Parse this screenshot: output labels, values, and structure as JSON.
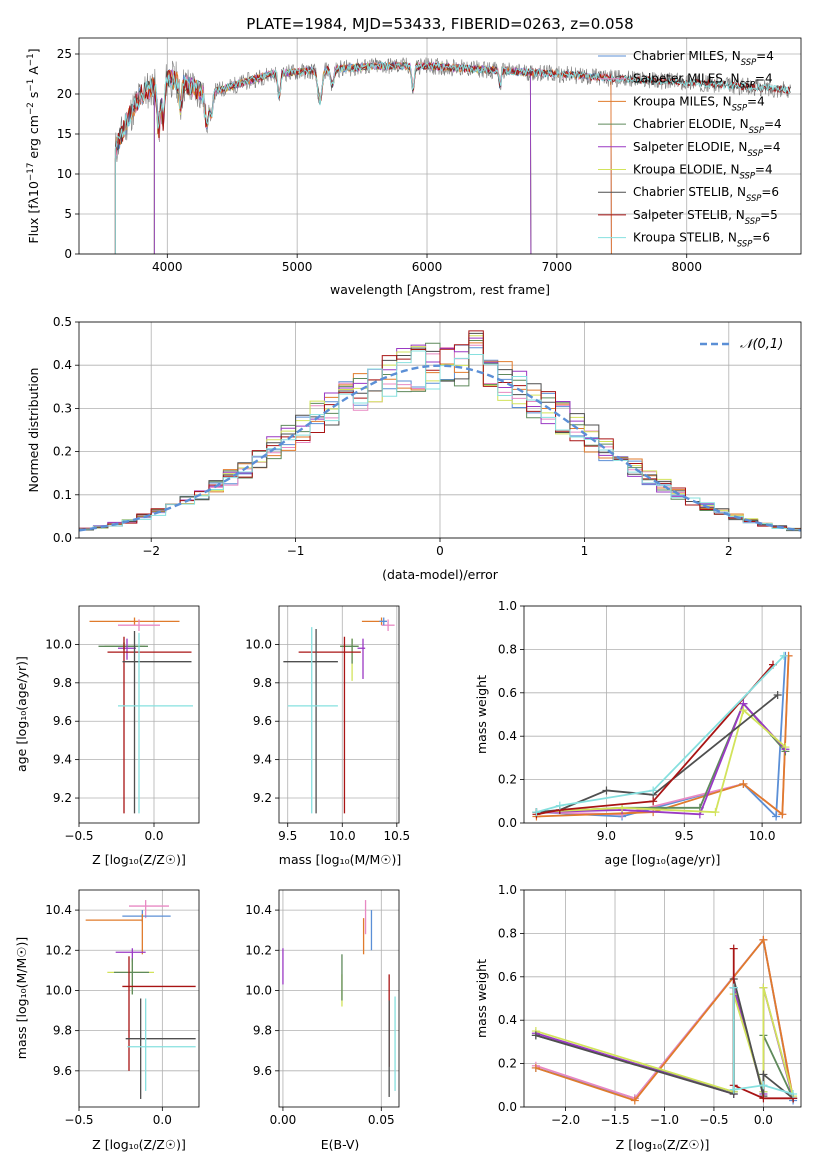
{
  "colors": {
    "Chabrier MILES": "#5b8fd6",
    "Salpeter MILES": "#e889c3",
    "Kroupa MILES": "#e07b2c",
    "Chabrier ELODIE": "#5f8a5c",
    "Salpeter ELODIE": "#9a39c4",
    "Kroupa ELODIE": "#d2e35b",
    "Chabrier STELIB": "#4f4f4f",
    "Salpeter STELIB": "#a81414",
    "Kroupa STELIB": "#86e0df",
    "gauss": "#5b8fd6",
    "data": "#7a7a7a"
  },
  "chart_data": [
    {
      "id": "spectrum",
      "type": "line",
      "title": "PLATE=1984, MJD=53433, FIBERID=0263, z=0.058",
      "xlabel": "wavelength [Angstrom, rest frame]",
      "ylabel": "Flux [fλ10⁻¹⁷ erg cm⁻² s⁻¹ A⁻¹]",
      "xlim": [
        3320,
        8880
      ],
      "ylim": [
        0,
        27
      ],
      "xticks": [
        4000,
        5000,
        6000,
        7000,
        8000
      ],
      "yticks": [
        0,
        5,
        10,
        15,
        20,
        25
      ],
      "legend": "top-right",
      "legend_entries": [
        "Chabrier MILES, N_SSP=4",
        "Salpeter MILES, N_SSP=4",
        "Kroupa MILES, N_SSP=4",
        "Chabrier ELODIE, N_SSP=4",
        "Salpeter ELODIE, N_SSP=4",
        "Kroupa ELODIE, N_SSP=4",
        "Chabrier STELIB, N_SSP=6",
        "Salpeter STELIB, N_SSP=5",
        "Kroupa STELIB, N_SSP=6"
      ],
      "continuum": [
        [
          3600,
          13
        ],
        [
          3700,
          17
        ],
        [
          3800,
          20
        ],
        [
          3900,
          21
        ],
        [
          4000,
          22
        ],
        [
          4100,
          21.5
        ],
        [
          4300,
          20
        ],
        [
          4500,
          21
        ],
        [
          4800,
          22.5
        ],
        [
          5200,
          23
        ],
        [
          5600,
          23.5
        ],
        [
          6000,
          23.5
        ],
        [
          6500,
          23
        ],
        [
          7000,
          22.5
        ],
        [
          7400,
          22
        ],
        [
          8000,
          21.5
        ],
        [
          8800,
          20.5
        ]
      ],
      "model_ranges": {
        "MILES": [
          3600,
          7420
        ],
        "ELODIE": [
          3900,
          6800
        ],
        "STELIB": [
          3600,
          8800
        ]
      },
      "data_range": [
        3600,
        8800
      ]
    },
    {
      "id": "residuals",
      "type": "line",
      "xlabel": "(data-model)/error",
      "ylabel": "Normed distribution",
      "xlim": [
        -2.5,
        2.5
      ],
      "ylim": [
        0,
        0.5
      ],
      "xticks": [
        -2,
        -1,
        0,
        1,
        2
      ],
      "xtick_labels": [
        "−2",
        "−1",
        "0",
        "1",
        "2"
      ],
      "yticks": [
        0.0,
        0.1,
        0.2,
        0.3,
        0.4,
        0.5
      ],
      "ytick_labels": [
        "0.0",
        "0.1",
        "0.2",
        "0.3",
        "0.4",
        "0.5"
      ],
      "legend": "top-right",
      "legend_entries": [
        "𝒩(0,1)"
      ],
      "bin_width": 0.1,
      "bin_start": -2.5
    },
    {
      "id": "z-age",
      "type": "scatter",
      "xlabel": "Z [log₁₀(Z/Z☉)]",
      "ylabel": "age  [log₁₀(age/yr)]",
      "xlim": [
        -0.5,
        0.3
      ],
      "ylim": [
        9.07,
        10.2
      ],
      "xticks": [
        -0.5,
        0.0
      ],
      "xtick_labels": [
        "−0.5",
        "0.0"
      ],
      "yticks": [
        9.2,
        9.4,
        9.6,
        9.8,
        10.0
      ],
      "ytick_labels": [
        "9.2",
        "9.4",
        "9.6",
        "9.8",
        "10.0"
      ],
      "points": [
        {
          "m": "Kroupa MILES",
          "x": -0.13,
          "y": 10.12,
          "ex": [
            -0.43,
            0.17
          ],
          "ey": [
            10.1,
            10.14
          ]
        },
        {
          "m": "Salpeter MILES",
          "x": -0.1,
          "y": 10.1,
          "ex": [
            -0.24,
            0.04
          ],
          "ey": [
            10.07,
            10.13
          ]
        },
        {
          "m": "Chabrier MILES",
          "x": -0.2,
          "y": 9.99,
          "ex": [
            -0.33,
            -0.08
          ],
          "ey": [
            9.97,
            10.01
          ]
        },
        {
          "m": "Kroupa ELODIE",
          "x": -0.2,
          "y": 9.99,
          "ex": [
            -0.33,
            -0.06
          ],
          "ey": [
            9.97,
            10.01
          ]
        },
        {
          "m": "Chabrier ELODIE",
          "x": -0.2,
          "y": 9.99,
          "ex": [
            -0.37,
            -0.04
          ],
          "ey": [
            9.97,
            10.01
          ]
        },
        {
          "m": "Salpeter ELODIE",
          "x": -0.18,
          "y": 9.98,
          "ex": [
            -0.24,
            -0.12
          ],
          "ey": [
            9.92,
            10.03
          ]
        },
        {
          "m": "Salpeter STELIB",
          "x": -0.2,
          "y": 9.96,
          "ex": [
            -0.31,
            0.25
          ],
          "ey": [
            9.12,
            10.04
          ]
        },
        {
          "m": "Chabrier STELIB",
          "x": -0.13,
          "y": 9.91,
          "ex": [
            -0.21,
            0.25
          ],
          "ey": [
            9.12,
            10.07
          ]
        },
        {
          "m": "Kroupa STELIB",
          "x": -0.1,
          "y": 9.68,
          "ex": [
            -0.24,
            0.26
          ],
          "ey": [
            9.12,
            10.06
          ]
        }
      ]
    },
    {
      "id": "mass-age",
      "type": "scatter",
      "xlabel": "mass [log₁₀(M/M☉)]",
      "ylabel": "",
      "xlim": [
        9.42,
        10.52
      ],
      "ylim": [
        9.07,
        10.2
      ],
      "xticks": [
        9.5,
        10.0,
        10.5
      ],
      "xtick_labels": [
        "9.5",
        "10.0",
        "10.5"
      ],
      "yticks": [
        9.2,
        9.4,
        9.6,
        9.8,
        10.0
      ],
      "ytick_labels": [
        "9.2",
        "9.4",
        "9.6",
        "9.8",
        "10.0"
      ],
      "points": [
        {
          "m": "Kroupa MILES",
          "x": 10.36,
          "y": 10.12,
          "ex": [
            10.18,
            10.41
          ],
          "ey": [
            10.1,
            10.14
          ]
        },
        {
          "m": "Salpeter MILES",
          "x": 10.42,
          "y": 10.1,
          "ex": [
            10.36,
            10.48
          ],
          "ey": [
            10.07,
            10.13
          ]
        },
        {
          "m": "Chabrier MILES",
          "x": 10.38,
          "y": 10.12,
          "ex": [
            10.34,
            10.41
          ],
          "ey": [
            10.1,
            10.14
          ]
        },
        {
          "m": "Kroupa ELODIE",
          "x": 10.09,
          "y": 9.99,
          "ex": [
            9.98,
            10.15
          ],
          "ey": [
            9.81,
            10.03
          ]
        },
        {
          "m": "Chabrier ELODIE",
          "x": 10.09,
          "y": 9.99,
          "ex": [
            9.98,
            10.15
          ],
          "ey": [
            9.9,
            10.03
          ]
        },
        {
          "m": "Salpeter ELODIE",
          "x": 10.19,
          "y": 9.98,
          "ex": [
            10.14,
            10.21
          ],
          "ey": [
            9.82,
            10.03
          ]
        },
        {
          "m": "Salpeter STELIB",
          "x": 10.02,
          "y": 9.96,
          "ex": [
            9.6,
            10.17
          ],
          "ey": [
            9.12,
            10.04
          ]
        },
        {
          "m": "Chabrier STELIB",
          "x": 9.76,
          "y": 9.91,
          "ex": [
            9.46,
            9.96
          ],
          "ey": [
            9.12,
            10.08
          ]
        },
        {
          "m": "Kroupa STELIB",
          "x": 9.72,
          "y": 9.68,
          "ex": [
            9.5,
            9.96
          ],
          "ey": [
            9.12,
            10.09
          ]
        }
      ]
    },
    {
      "id": "age-weight",
      "type": "line",
      "xlabel": "age  [log₁₀(age/yr)]",
      "ylabel": "mass weight",
      "xlim": [
        8.47,
        10.25
      ],
      "ylim": [
        0,
        1
      ],
      "xticks": [
        9.0,
        9.5,
        10.0
      ],
      "xtick_labels": [
        "9.0",
        "9.5",
        "10.0"
      ],
      "yticks": [
        0.0,
        0.2,
        0.4,
        0.6,
        0.8,
        1.0
      ],
      "ytick_labels": [
        "0.0",
        "0.2",
        "0.4",
        "0.6",
        "0.8",
        "1.0"
      ],
      "series": [
        {
          "m": "Chabrier MILES",
          "x": [
            8.55,
            9.1,
            9.88,
            10.09,
            10.15
          ],
          "y": [
            0.05,
            0.03,
            0.18,
            0.03,
            0.77
          ]
        },
        {
          "m": "Salpeter MILES",
          "x": [
            8.55,
            9.1,
            9.88,
            10.13,
            10.17
          ],
          "y": [
            0.05,
            0.04,
            0.18,
            0.04,
            0.77
          ]
        },
        {
          "m": "Kroupa MILES",
          "x": [
            8.55,
            9.3,
            9.88,
            10.13,
            10.17
          ],
          "y": [
            0.03,
            0.05,
            0.18,
            0.04,
            0.77
          ]
        },
        {
          "m": "Chabrier ELODIE",
          "x": [
            8.55,
            9.1,
            9.6,
            9.88,
            10.15
          ],
          "y": [
            0.05,
            0.07,
            0.07,
            0.55,
            0.33
          ]
        },
        {
          "m": "Salpeter ELODIE",
          "x": [
            8.55,
            9.1,
            9.6,
            9.88,
            10.15
          ],
          "y": [
            0.05,
            0.06,
            0.04,
            0.55,
            0.34
          ]
        },
        {
          "m": "Kroupa ELODIE",
          "x": [
            8.55,
            9.1,
            9.7,
            9.88,
            10.15
          ],
          "y": [
            0.05,
            0.07,
            0.05,
            0.52,
            0.35
          ]
        },
        {
          "m": "Chabrier STELIB",
          "x": [
            8.55,
            8.7,
            9.0,
            9.3,
            10.1
          ],
          "y": [
            0.05,
            0.06,
            0.15,
            0.13,
            0.59
          ]
        },
        {
          "m": "Salpeter STELIB",
          "x": [
            8.55,
            8.7,
            9.3,
            10.07
          ],
          "y": [
            0.04,
            0.06,
            0.1,
            0.73
          ]
        },
        {
          "m": "Kroupa STELIB",
          "x": [
            8.55,
            8.7,
            9.3,
            10.14
          ],
          "y": [
            0.05,
            0.08,
            0.15,
            0.77
          ]
        }
      ]
    },
    {
      "id": "z-mass",
      "type": "scatter",
      "xlabel": "Z [log₁₀(Z/Z☉)]",
      "ylabel": "mass [log₁₀(M/M☉)]",
      "xlim": [
        -0.5,
        0.22
      ],
      "ylim": [
        9.42,
        10.5
      ],
      "xticks": [
        -0.5,
        0.0
      ],
      "xtick_labels": [
        "−0.5",
        "0.0"
      ],
      "yticks": [
        9.6,
        9.8,
        10.0,
        10.2,
        10.4
      ],
      "ytick_labels": [
        "9.6",
        "9.8",
        "10.0",
        "10.2",
        "10.4"
      ],
      "points": [
        {
          "m": "Salpeter MILES",
          "x": -0.1,
          "y": 10.42,
          "ex": [
            -0.2,
            0.04
          ],
          "ey": [
            10.36,
            10.45
          ]
        },
        {
          "m": "Chabrier MILES",
          "x": -0.12,
          "y": 10.37,
          "ex": [
            -0.24,
            0.05
          ],
          "ey": [
            10.34,
            10.4
          ]
        },
        {
          "m": "Kroupa MILES",
          "x": -0.12,
          "y": 10.35,
          "ex": [
            -0.46,
            -0.12
          ],
          "ey": [
            10.18,
            10.38
          ]
        },
        {
          "m": "Salpeter ELODIE",
          "x": -0.18,
          "y": 10.19,
          "ex": [
            -0.28,
            -0.1
          ],
          "ey": [
            10.14,
            10.21
          ]
        },
        {
          "m": "Kroupa ELODIE",
          "x": -0.18,
          "y": 10.09,
          "ex": [
            -0.33,
            -0.05
          ],
          "ey": [
            9.98,
            10.15
          ]
        },
        {
          "m": "Chabrier ELODIE",
          "x": -0.18,
          "y": 10.09,
          "ex": [
            -0.29,
            -0.08
          ],
          "ey": [
            9.98,
            10.16
          ]
        },
        {
          "m": "Salpeter STELIB",
          "x": -0.2,
          "y": 10.02,
          "ex": [
            -0.24,
            0.2
          ],
          "ey": [
            9.6,
            10.17
          ]
        },
        {
          "m": "Chabrier STELIB",
          "x": -0.13,
          "y": 9.76,
          "ex": [
            -0.22,
            0.2
          ],
          "ey": [
            9.46,
            9.96
          ]
        },
        {
          "m": "Kroupa STELIB",
          "x": -0.1,
          "y": 9.72,
          "ex": [
            -0.21,
            0.2
          ],
          "ey": [
            9.5,
            9.96
          ]
        }
      ]
    },
    {
      "id": "ebv-mass",
      "type": "scatter",
      "xlabel": "E(B-V)",
      "ylabel": "",
      "xlim": [
        -0.002,
        0.059
      ],
      "ylim": [
        9.42,
        10.5
      ],
      "xticks": [
        0.0,
        0.05
      ],
      "xtick_labels": [
        "0.00",
        "0.05"
      ],
      "yticks": [
        9.6,
        9.8,
        10.0,
        10.2,
        10.4
      ],
      "ytick_labels": [
        "9.6",
        "9.8",
        "10.0",
        "10.2",
        "10.4"
      ],
      "points": [
        {
          "m": "Salpeter ELODIE",
          "x": 0.0,
          "ey": [
            10.03,
            10.21
          ]
        },
        {
          "m": "Kroupa ELODIE",
          "x": 0.03,
          "ey": [
            9.92,
            10.08
          ]
        },
        {
          "m": "Chabrier ELODIE",
          "x": 0.03,
          "ey": [
            9.95,
            10.18
          ]
        },
        {
          "m": "Kroupa MILES",
          "x": 0.041,
          "ey": [
            10.18,
            10.36
          ]
        },
        {
          "m": "Salpeter MILES",
          "x": 0.042,
          "ey": [
            10.28,
            10.45
          ]
        },
        {
          "m": "Chabrier MILES",
          "x": 0.045,
          "ey": [
            10.2,
            10.4
          ]
        },
        {
          "m": "Salpeter STELIB",
          "x": 0.054,
          "ey": [
            9.62,
            10.08
          ]
        },
        {
          "m": "Chabrier STELIB",
          "x": 0.054,
          "ey": [
            9.47,
            9.95
          ]
        },
        {
          "m": "Kroupa STELIB",
          "x": 0.057,
          "ey": [
            9.5,
            9.97
          ]
        }
      ]
    },
    {
      "id": "z-weight",
      "type": "line",
      "xlabel": "Z [log₁₀(Z/Z☉)]",
      "ylabel": "mass weight",
      "xlim": [
        -2.42,
        0.38
      ],
      "ylim": [
        0,
        1
      ],
      "xticks": [
        -2.0,
        -1.5,
        -1.0,
        -0.5,
        0.0
      ],
      "xtick_labels": [
        "−2.0",
        "−1.5",
        "−1.0",
        "−0.5",
        "0.0"
      ],
      "yticks": [
        0.0,
        0.2,
        0.4,
        0.6,
        0.8,
        1.0
      ],
      "ytick_labels": [
        "0.0",
        "0.2",
        "0.4",
        "0.6",
        "0.8",
        "1.0"
      ],
      "series": [
        {
          "m": "Chabrier MILES",
          "x": [
            -2.3,
            -1.3,
            0.0,
            0.3
          ],
          "y": [
            0.18,
            0.04,
            0.77,
            0.03
          ]
        },
        {
          "m": "Salpeter MILES",
          "x": [
            -2.3,
            -1.3,
            0.0,
            0.3
          ],
          "y": [
            0.19,
            0.04,
            0.77,
            0.04
          ]
        },
        {
          "m": "Kroupa MILES",
          "x": [
            -2.3,
            -1.3,
            0.0,
            0.3
          ],
          "y": [
            0.18,
            0.03,
            0.77,
            0.04
          ]
        },
        {
          "m": "Chabrier ELODIE",
          "x": [
            -2.3,
            -0.3,
            -0.3,
            0.0,
            0.0,
            0.3
          ],
          "y": [
            0.33,
            0.07,
            0.55,
            0.07,
            0.33,
            0.04
          ]
        },
        {
          "m": "Salpeter ELODIE",
          "x": [
            -2.3,
            -0.3,
            -0.3,
            0.0,
            0.0,
            0.3
          ],
          "y": [
            0.34,
            0.06,
            0.55,
            0.06,
            0.55,
            0.04
          ]
        },
        {
          "m": "Kroupa ELODIE",
          "x": [
            -2.3,
            -0.3,
            -0.3,
            0.0,
            0.0,
            0.3
          ],
          "y": [
            0.35,
            0.07,
            0.52,
            0.07,
            0.55,
            0.05
          ]
        },
        {
          "m": "Chabrier STELIB",
          "x": [
            -2.3,
            -0.3,
            -0.3,
            0.0,
            0.0,
            0.3
          ],
          "y": [
            0.33,
            0.06,
            0.59,
            0.05,
            0.15,
            0.04
          ]
        },
        {
          "m": "Salpeter STELIB",
          "x": [
            -0.3,
            -0.3,
            0.0,
            0.3
          ],
          "y": [
            0.73,
            0.1,
            0.04,
            0.04
          ]
        },
        {
          "m": "Kroupa STELIB",
          "x": [
            -0.3,
            -0.3,
            0.0,
            0.0,
            0.3
          ],
          "y": [
            0.55,
            0.08,
            0.1,
            0.1,
            0.06
          ]
        }
      ]
    }
  ]
}
